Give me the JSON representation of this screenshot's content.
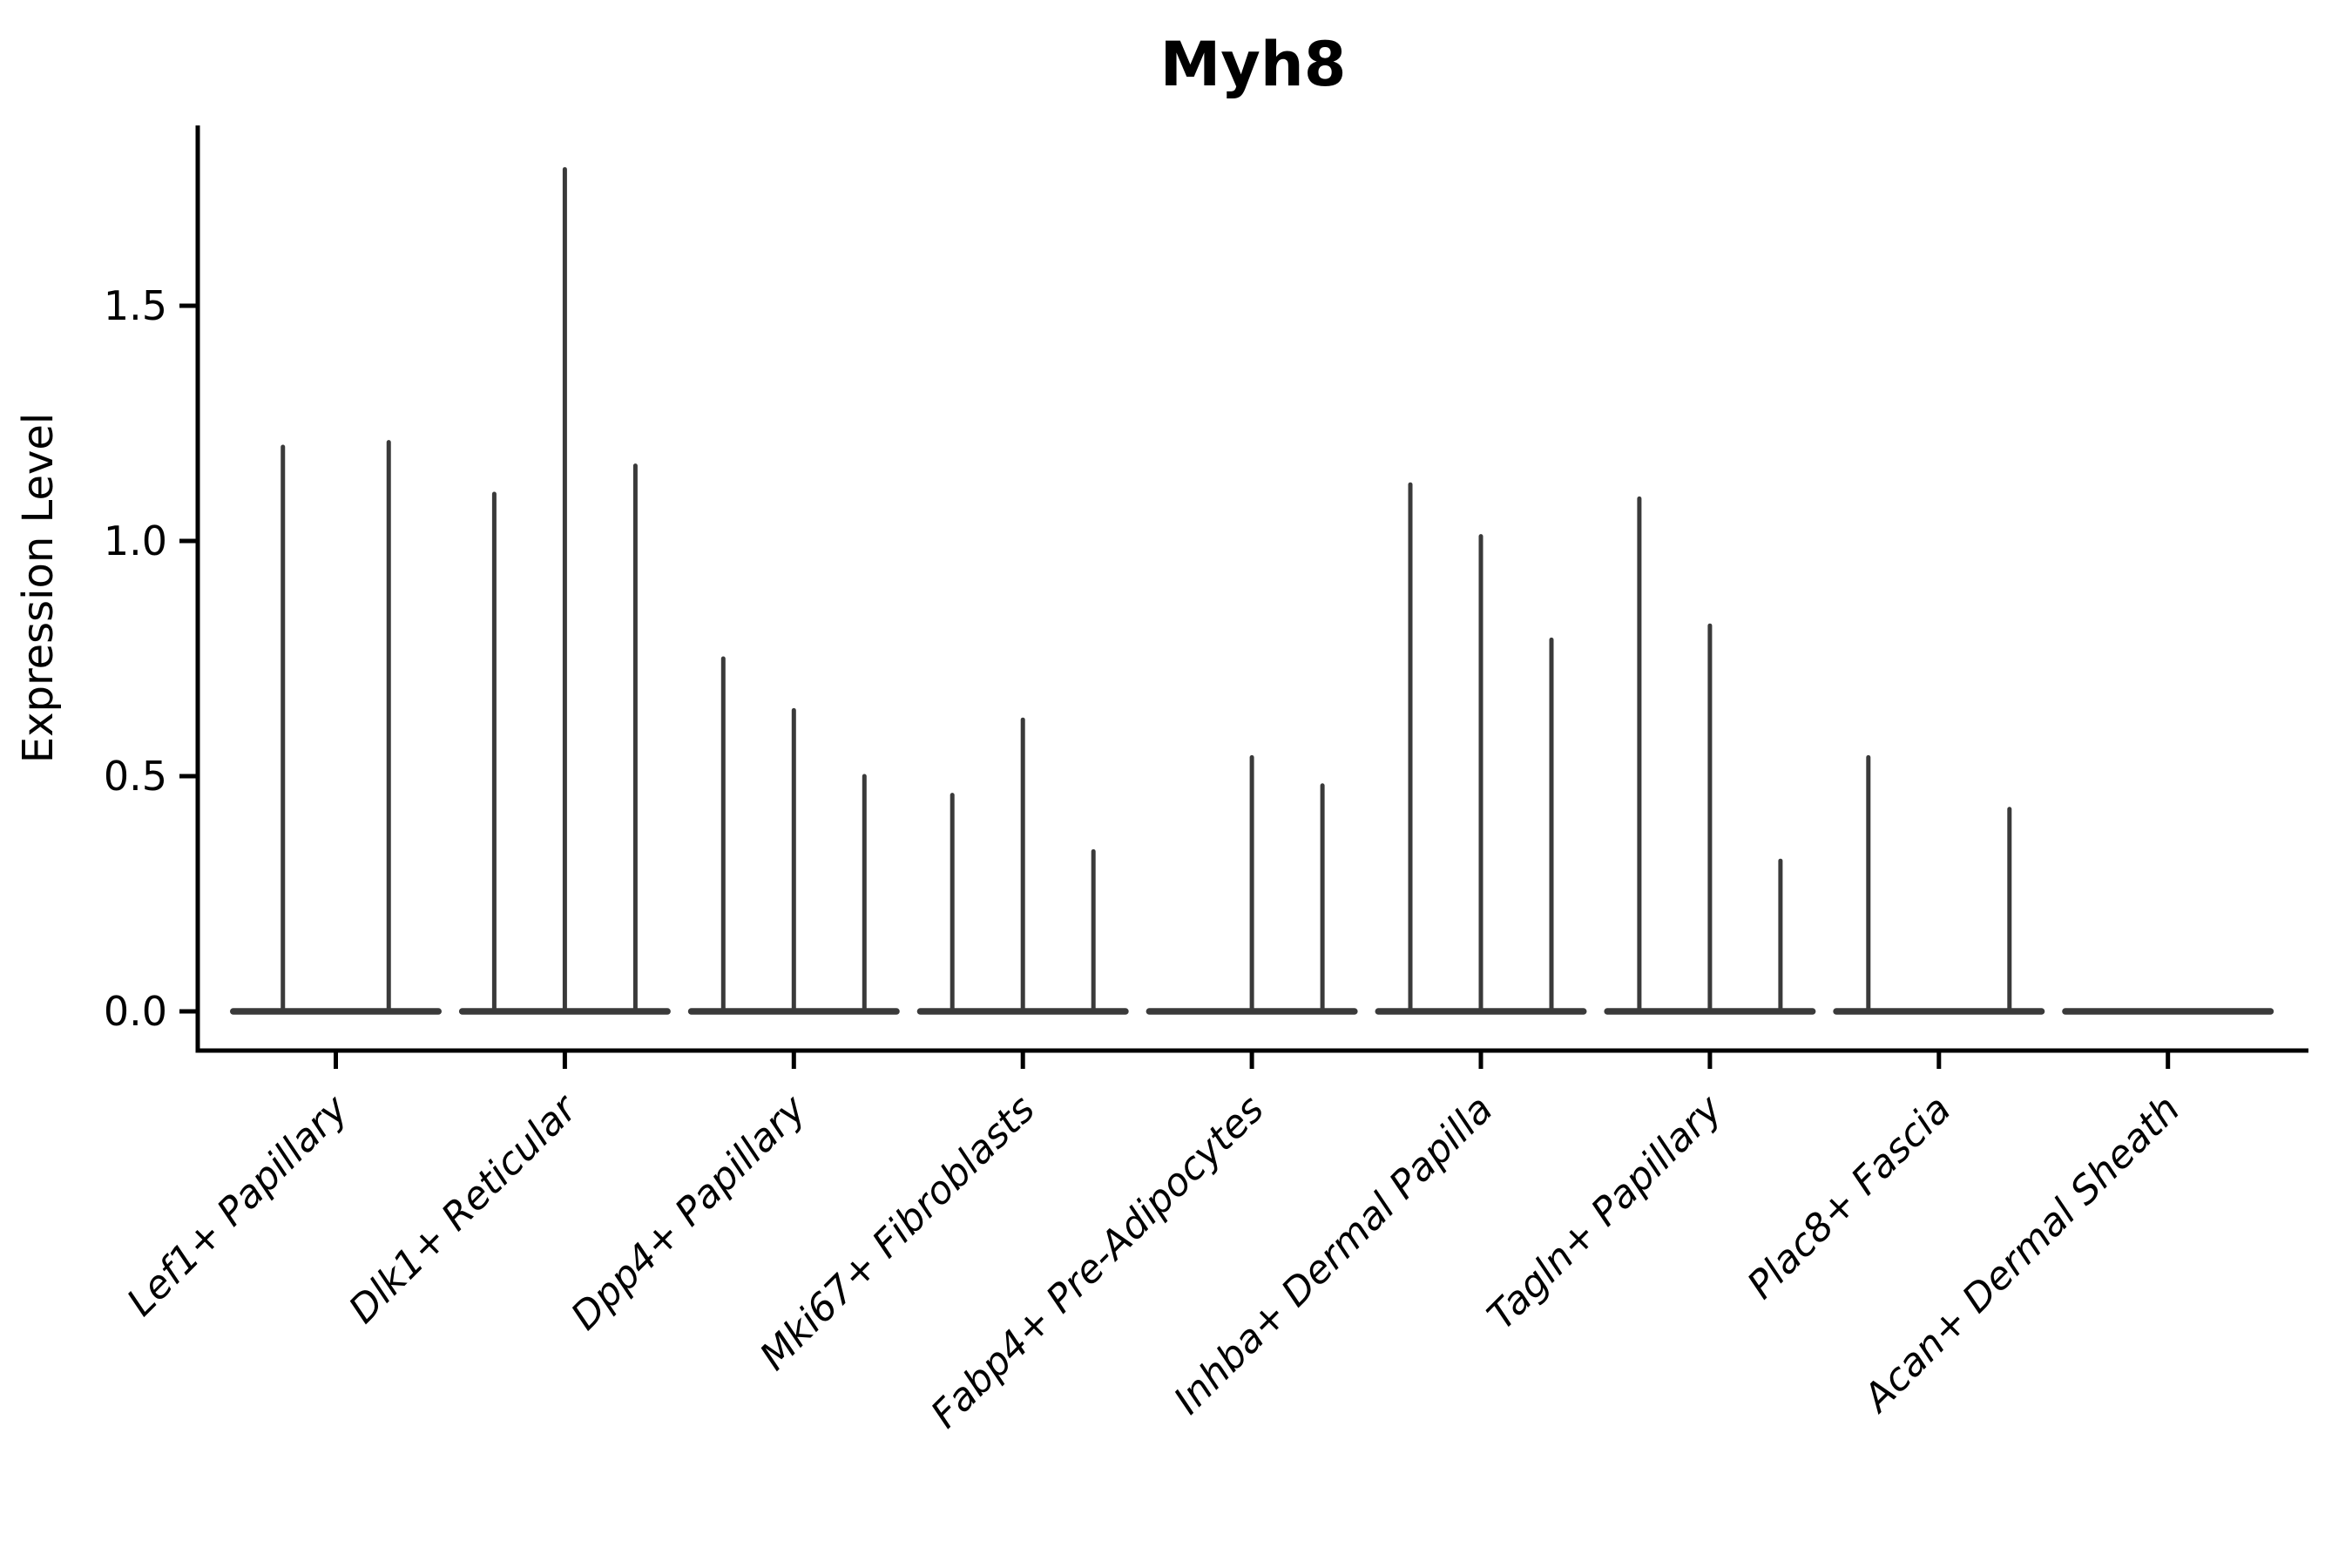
{
  "figure": {
    "background": "#ffffff"
  },
  "chart_data": {
    "type": "violin",
    "title": "Myh8",
    "ylabel": "Expression Level",
    "xlabel": "",
    "ytick_labels": [
      "0.0",
      "0.5",
      "1.0",
      "1.5"
    ],
    "ytick_values": [
      0.0,
      0.5,
      1.0,
      1.5
    ],
    "ylim": [
      -0.083,
      1.883
    ],
    "grid": false,
    "legend": "none",
    "categories": [
      "Lef1+ Papillary",
      "Dlk1+ Reticular",
      "Dpp4+ Papillary",
      "Mki67+ Fibroblasts",
      "Fabp4+ Pre-Adipocytes",
      "Inhba+ Dermal Papilla",
      "Tagln+ Papillary",
      "Plac8+ Fascia",
      "Acan+ Dermal Sheath"
    ],
    "groups": [
      {
        "category": "Lef1+ Papillary",
        "violin_maxima": [
          1.2,
          1.21
        ]
      },
      {
        "category": "Dlk1+ Reticular",
        "violin_maxima": [
          1.1,
          1.79,
          1.16
        ]
      },
      {
        "category": "Dpp4+ Papillary",
        "violin_maxima": [
          0.75,
          0.64,
          0.5
        ]
      },
      {
        "category": "Mki67+ Fibroblasts",
        "violin_maxima": [
          0.46,
          0.62,
          0.34
        ]
      },
      {
        "category": "Fabp4+ Pre-Adipocytes",
        "violin_maxima": [
          0,
          0.54,
          0.48
        ]
      },
      {
        "category": "Inhba+ Dermal Papilla",
        "violin_maxima": [
          1.12,
          1.01,
          0.79
        ]
      },
      {
        "category": "Tagln+ Papillary",
        "violin_maxima": [
          1.09,
          0.82,
          0.32
        ]
      },
      {
        "category": "Plac8+ Fascia",
        "violin_maxima": [
          0.54,
          0,
          0.43
        ]
      },
      {
        "category": "Acan+ Dermal Sheath",
        "violin_maxima": [
          0,
          0,
          0
        ]
      }
    ],
    "colors": {
      "violin": "#3a3a3a",
      "axis": "#000000",
      "text": "#000000",
      "background": "#ffffff"
    },
    "notes": "Each violin is collapsed to a flat baseline at expression 0 with a thin spike rising to its maximum value; baselines of violins within a category merge into one strip."
  }
}
